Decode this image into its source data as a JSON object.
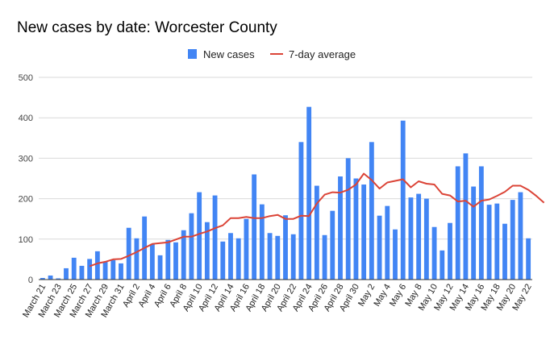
{
  "chart_data": {
    "type": "bar",
    "title": "New cases by date: Worcester County",
    "legend_position": "top",
    "colors": {
      "bar": "#4285f4",
      "line": "#db4437"
    },
    "series": [
      {
        "name": "New cases",
        "kind": "bar",
        "values": [
          4,
          10,
          3,
          28,
          54,
          34,
          51,
          70,
          44,
          48,
          40,
          128,
          102,
          156,
          88,
          60,
          98,
          92,
          122,
          164,
          216,
          142,
          208,
          94,
          115,
          102,
          150,
          260,
          186,
          115,
          108,
          159,
          112,
          340,
          427,
          232,
          110,
          170,
          255,
          300,
          250,
          235,
          340,
          158,
          182,
          124,
          393,
          203,
          212,
          200,
          130,
          72,
          140,
          280,
          312,
          230,
          280,
          185,
          188,
          138,
          197,
          216,
          102
        ]
      },
      {
        "name": "7-day average",
        "kind": "line",
        "start_index": 6,
        "values": [
          33,
          40,
          44,
          50,
          51,
          59,
          68,
          78,
          88,
          90,
          92,
          99,
          106,
          106,
          113,
          119,
          127,
          134,
          152,
          152,
          155,
          152,
          152,
          157,
          160,
          150,
          150,
          158,
          157,
          188,
          210,
          216,
          215,
          222,
          235,
          262,
          246,
          225,
          240,
          244,
          248,
          228,
          243,
          237,
          235,
          212,
          208,
          193,
          195,
          180,
          195,
          198,
          207,
          217,
          232,
          232,
          222,
          207,
          190
        ]
      }
    ],
    "x_labels": [
      "March 21",
      "March 23",
      "March 25",
      "March 27",
      "March 29",
      "March 31",
      "April 2",
      "April 4",
      "April 6",
      "April 8",
      "April 10",
      "April 12",
      "April 14",
      "April 16",
      "April 18",
      "April 20",
      "April 22",
      "April 24",
      "April 26",
      "April 28",
      "April 30",
      "May 2",
      "May 4",
      "May 6",
      "May 8",
      "May 10",
      "May 12",
      "May 14",
      "May 16",
      "May 18",
      "May 20",
      "May 22"
    ],
    "x_label_step": 2,
    "yticks": [
      0,
      100,
      200,
      300,
      400,
      500
    ],
    "ylim": [
      0,
      500
    ],
    "grid": true
  }
}
